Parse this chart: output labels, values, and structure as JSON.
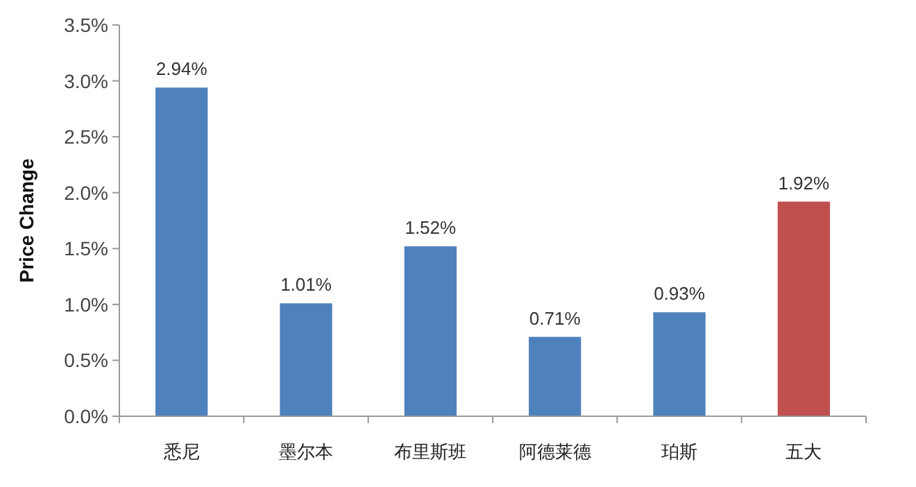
{
  "chart_data": {
    "type": "bar",
    "ylabel": "Price Change",
    "categories": [
      "悉尼",
      "墨尔本",
      "布里斯班",
      "阿德莱德",
      "珀斯",
      "五大"
    ],
    "values": [
      2.94,
      1.01,
      1.52,
      0.71,
      0.93,
      1.92
    ],
    "colors": [
      "#4f81bd",
      "#4f81bd",
      "#4f81bd",
      "#4f81bd",
      "#4f81bd",
      "#c0504d"
    ],
    "value_labels": [
      "2.94%",
      "1.01%",
      "1.52%",
      "0.71%",
      "0.93%",
      "1.92%"
    ],
    "ylim": [
      0,
      3.5
    ],
    "yticks": [
      {
        "value": 0,
        "label": "0.0%"
      },
      {
        "value": 0.5,
        "label": "0.5%"
      },
      {
        "value": 1,
        "label": "1.0%"
      },
      {
        "value": 1.5,
        "label": "1.5%"
      },
      {
        "value": 2,
        "label": "2.0%"
      },
      {
        "value": 2.5,
        "label": "2.5%"
      },
      {
        "value": 3,
        "label": "3.0%"
      },
      {
        "value": 3.5,
        "label": "3.5%"
      }
    ],
    "grid": false
  }
}
